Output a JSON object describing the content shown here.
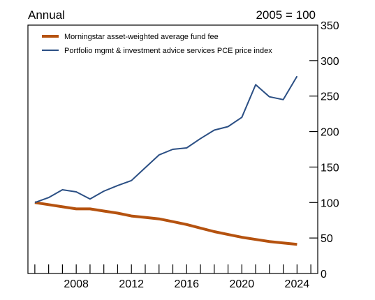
{
  "chart_data": {
    "type": "line",
    "title": "",
    "left_note": "Annual",
    "right_note": "2005 = 100",
    "xlabel": "",
    "ylabel": "",
    "xlim": [
      2004.5,
      2025.5
    ],
    "ylim": [
      0,
      350
    ],
    "x_tick_labels": [
      "2008",
      "2012",
      "2016",
      "2020",
      "2024"
    ],
    "y_tick_labels": [
      "0",
      "50",
      "100",
      "150",
      "200",
      "250",
      "300",
      "350"
    ],
    "grid": false,
    "legend_position": "top-left",
    "x": [
      2005,
      2006,
      2007,
      2008,
      2009,
      2010,
      2011,
      2012,
      2013,
      2014,
      2015,
      2016,
      2017,
      2018,
      2019,
      2020,
      2021,
      2022,
      2023,
      2024
    ],
    "series": [
      {
        "name": "Morningstar asset-weighted average fund fee",
        "color": "#b5520f",
        "values": [
          100,
          97,
          94,
          91,
          91,
          88,
          85,
          81,
          79,
          77,
          73,
          69,
          64,
          59,
          55,
          51,
          48,
          45,
          43,
          41
        ]
      },
      {
        "name": "Portfolio mgmt & investment advice services PCE price index",
        "color": "#2b4f84",
        "values": [
          100,
          107,
          118,
          115,
          105,
          116,
          124,
          131,
          149,
          167,
          175,
          177,
          190,
          202,
          207,
          220,
          266,
          249,
          245,
          278
        ]
      }
    ]
  }
}
